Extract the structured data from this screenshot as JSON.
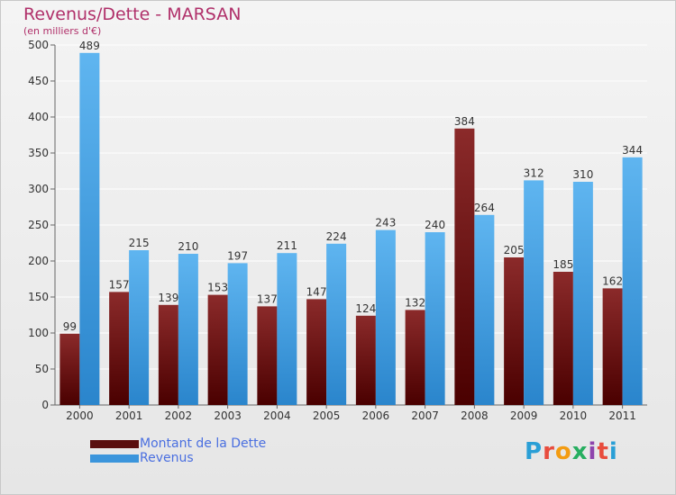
{
  "header": {
    "title": "Revenus/Dette - MARSAN",
    "subtitle": "(en milliers d'€)"
  },
  "logo": {
    "text": "Proxiti",
    "colors": [
      "#2a9fd6",
      "#e84c3d",
      "#f39c12",
      "#27ae60",
      "#8e44ad",
      "#e84c3d",
      "#2a9fd6"
    ]
  },
  "chart_data": {
    "type": "bar",
    "title": "Revenus/Dette - MARSAN",
    "ylabel": "(en milliers d'€)",
    "categories": [
      "2000",
      "2001",
      "2002",
      "2003",
      "2004",
      "2005",
      "2006",
      "2007",
      "2008",
      "2009",
      "2010",
      "2011"
    ],
    "series": [
      {
        "name": "Montant de la Dette",
        "color": "#7a1a1a",
        "values": [
          99,
          157,
          139,
          153,
          137,
          147,
          124,
          132,
          384,
          205,
          185,
          162
        ]
      },
      {
        "name": "Revenus",
        "color": "#4ea6e6",
        "values": [
          489,
          215,
          210,
          197,
          211,
          224,
          243,
          240,
          264,
          312,
          310,
          344
        ]
      }
    ],
    "ylim": [
      0,
      500
    ],
    "yticks": [
      0,
      50,
      100,
      150,
      200,
      250,
      300,
      350,
      400,
      450,
      500
    ],
    "grid": true,
    "legend_position": "bottom-left"
  }
}
